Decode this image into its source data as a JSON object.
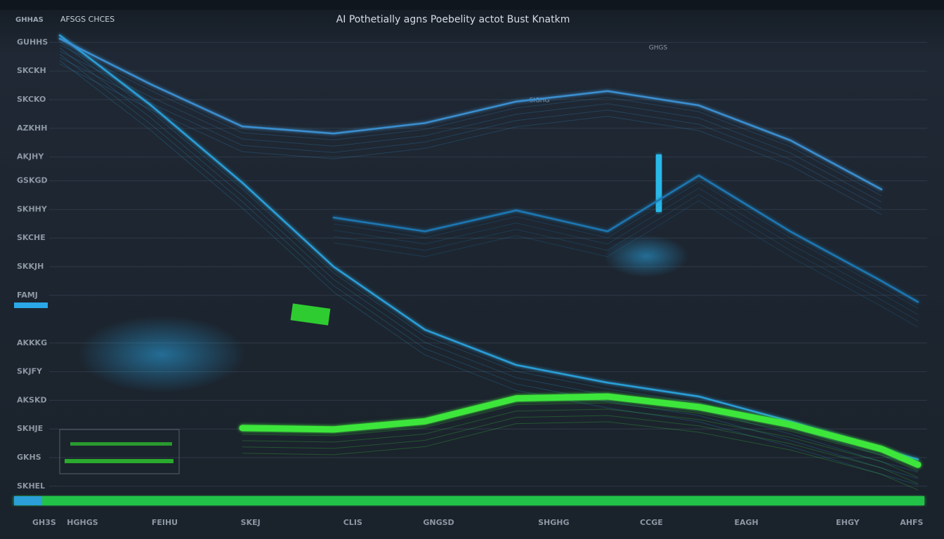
{
  "header": {
    "corner": "GHHAS",
    "subtitle": "AFSGS CHCES"
  },
  "annotations": [
    "SIGHG",
    "GHGS"
  ],
  "chart_data": {
    "type": "line",
    "title": "AI Pothetially agns Poebelity actot Bust Knatkm",
    "x": [
      5,
      15,
      25,
      35,
      45,
      55,
      65,
      75,
      85,
      95,
      99
    ],
    "xlim": [
      0,
      100
    ],
    "xticks": [
      {
        "value": 3.3,
        "label": "GH3S"
      },
      {
        "value": 7.5,
        "label": "HGHGS"
      },
      {
        "value": 16.5,
        "label": "FEIHU"
      },
      {
        "value": 25.9,
        "label": "SKEJ"
      },
      {
        "value": 37.1,
        "label": "CLIS"
      },
      {
        "value": 46.5,
        "label": "GNGSD"
      },
      {
        "value": 59.1,
        "label": "SHGHG"
      },
      {
        "value": 69.8,
        "label": "CCGE"
      },
      {
        "value": 80.2,
        "label": "EAGH"
      },
      {
        "value": 91.3,
        "label": "EHGY"
      },
      {
        "value": 98.3,
        "label": "AHFS"
      }
    ],
    "ylim": [
      0,
      100
    ],
    "yticks": [
      {
        "value": 97,
        "label": "GUHHS"
      },
      {
        "value": 91,
        "label": "SKCKH"
      },
      {
        "value": 85,
        "label": "SKCKO"
      },
      {
        "value": 79,
        "label": "AZKHH"
      },
      {
        "value": 73,
        "label": "AKJHY"
      },
      {
        "value": 68,
        "label": "GSKGD"
      },
      {
        "value": 62,
        "label": "SKHHY"
      },
      {
        "value": 56,
        "label": "SKCHE"
      },
      {
        "value": 50,
        "label": "SKKJH"
      },
      {
        "value": 44,
        "label": "FAMJ"
      },
      {
        "value": 34,
        "label": "AKKKG"
      },
      {
        "value": 28,
        "label": "SKJFY"
      },
      {
        "value": 22,
        "label": "AKSKD"
      },
      {
        "value": 16,
        "label": "SKHJE"
      },
      {
        "value": 10,
        "label": "GKHS"
      },
      {
        "value": 4,
        "label": "SKHEL"
      }
    ],
    "grid": true,
    "series": [
      {
        "color": "#2a9fd8",
        "values": [
          98.5,
          83.8,
          67.6,
          50,
          36.8,
          29.4,
          25.7,
          22.8,
          17.6,
          11.8,
          9.6
        ]
      },
      {
        "color": "#1f78b4",
        "values": [
          null,
          null,
          null,
          60.3,
          57.4,
          61.8,
          57.4,
          69.1,
          57.4,
          47,
          42.6
        ]
      },
      {
        "color": "#3a8fd0",
        "values": [
          97.8,
          88.2,
          79.4,
          77.9,
          80.1,
          84.6,
          86.8,
          83.8,
          76.5,
          66.2,
          null
        ]
      },
      {
        "color": "#3ee63a",
        "values": [
          null,
          null,
          16.2,
          15.9,
          17.6,
          22.4,
          22.8,
          20.6,
          16.9,
          11.8,
          8.5
        ]
      }
    ]
  }
}
